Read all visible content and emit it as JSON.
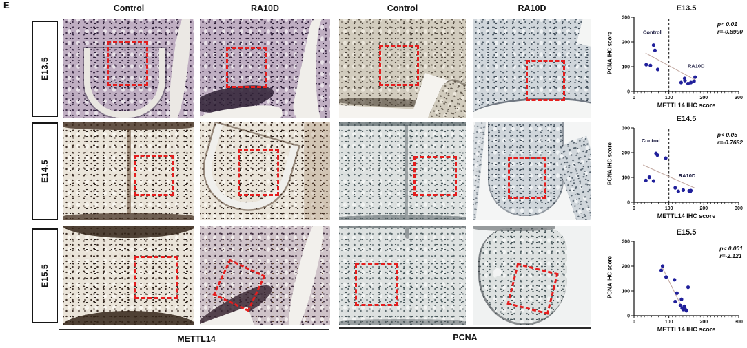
{
  "panel_label": "E",
  "grid": {
    "column_headers": [
      "Control",
      "RA10D",
      "Control",
      "RA10D"
    ],
    "row_labels": [
      "E13.5",
      "E14.5",
      "E15.5"
    ],
    "group_labels": [
      "METTL14",
      "PCNA"
    ]
  },
  "colors": {
    "roi_red": "#e41e1e",
    "point_navy": "#20209b",
    "trend_line": "#c2a8a0"
  },
  "chart_data": [
    {
      "type": "scatter",
      "title": "E13.5",
      "xlabel": "METTL14 IHC score",
      "ylabel": "PCNA IHC score",
      "xlim": [
        0,
        300
      ],
      "ylim": [
        0,
        300
      ],
      "ticks": [
        0,
        100,
        200,
        300
      ],
      "x_minor_step": 10,
      "p_label": "p< 0.01",
      "r_label": "r=-0.8990",
      "dashed_x": 100,
      "trend": [
        [
          33,
          155
        ],
        [
          178,
          45
        ]
      ],
      "groups": [
        {
          "name": "Control",
          "label_pos": [
            52,
            232
          ],
          "points": [
            [
              35,
              108
            ],
            [
              47,
              105
            ],
            [
              68,
              89
            ],
            [
              56,
              187
            ],
            [
              60,
              166
            ]
          ]
        },
        {
          "name": "RA10D",
          "label_pos": [
            178,
            96
          ],
          "points": [
            [
              135,
              36
            ],
            [
              145,
              53
            ],
            [
              146,
              44
            ],
            [
              155,
              32
            ],
            [
              163,
              36
            ],
            [
              172,
              41
            ],
            [
              175,
              58
            ]
          ]
        }
      ]
    },
    {
      "type": "scatter",
      "title": "E14.5",
      "xlabel": "METTL14 IHC score",
      "ylabel": "PCNA IHC score",
      "xlim": [
        0,
        300
      ],
      "ylim": [
        0,
        300
      ],
      "ticks": [
        0,
        100,
        200,
        300
      ],
      "x_minor_step": 10,
      "p_label": "p< 0.05",
      "r_label": "r=-0.7682",
      "dashed_x": 100,
      "trend": [
        [
          26,
          150
        ],
        [
          173,
          58
        ]
      ],
      "groups": [
        {
          "name": "Control",
          "label_pos": [
            48,
            242
          ],
          "points": [
            [
              34,
              88
            ],
            [
              44,
              101
            ],
            [
              56,
              86
            ],
            [
              63,
              197
            ],
            [
              67,
              190
            ],
            [
              91,
              178
            ]
          ]
        },
        {
          "name": "RA10D",
          "label_pos": [
            152,
            100
          ],
          "points": [
            [
              118,
              58
            ],
            [
              127,
              44
            ],
            [
              141,
              49
            ],
            [
              158,
              46
            ],
            [
              161,
              43
            ],
            [
              163,
              47
            ]
          ]
        }
      ]
    },
    {
      "type": "scatter",
      "title": "E15.5",
      "xlabel": "METTL14 IHC score",
      "ylabel": "PCNA IHC score",
      "xlim": [
        0,
        300
      ],
      "ylim": [
        0,
        300
      ],
      "ticks": [
        0,
        100,
        200,
        300
      ],
      "x_minor_step": 10,
      "p_label": "p< 0.001",
      "r_label": "r=-2.121",
      "dashed_x": null,
      "trend": [
        [
          82,
          192
        ],
        [
          143,
          18
        ]
      ],
      "groups": [
        {
          "name": "",
          "points": [
            [
              82,
              200
            ],
            [
              78,
              183
            ],
            [
              92,
              156
            ],
            [
              116,
              145
            ],
            [
              123,
              91
            ],
            [
              118,
              57
            ],
            [
              136,
              66
            ],
            [
              133,
              41
            ],
            [
              138,
              30
            ],
            [
              141,
              25
            ],
            [
              144,
              38
            ],
            [
              146,
              28
            ],
            [
              150,
              20
            ],
            [
              155,
              115
            ]
          ]
        }
      ]
    }
  ]
}
